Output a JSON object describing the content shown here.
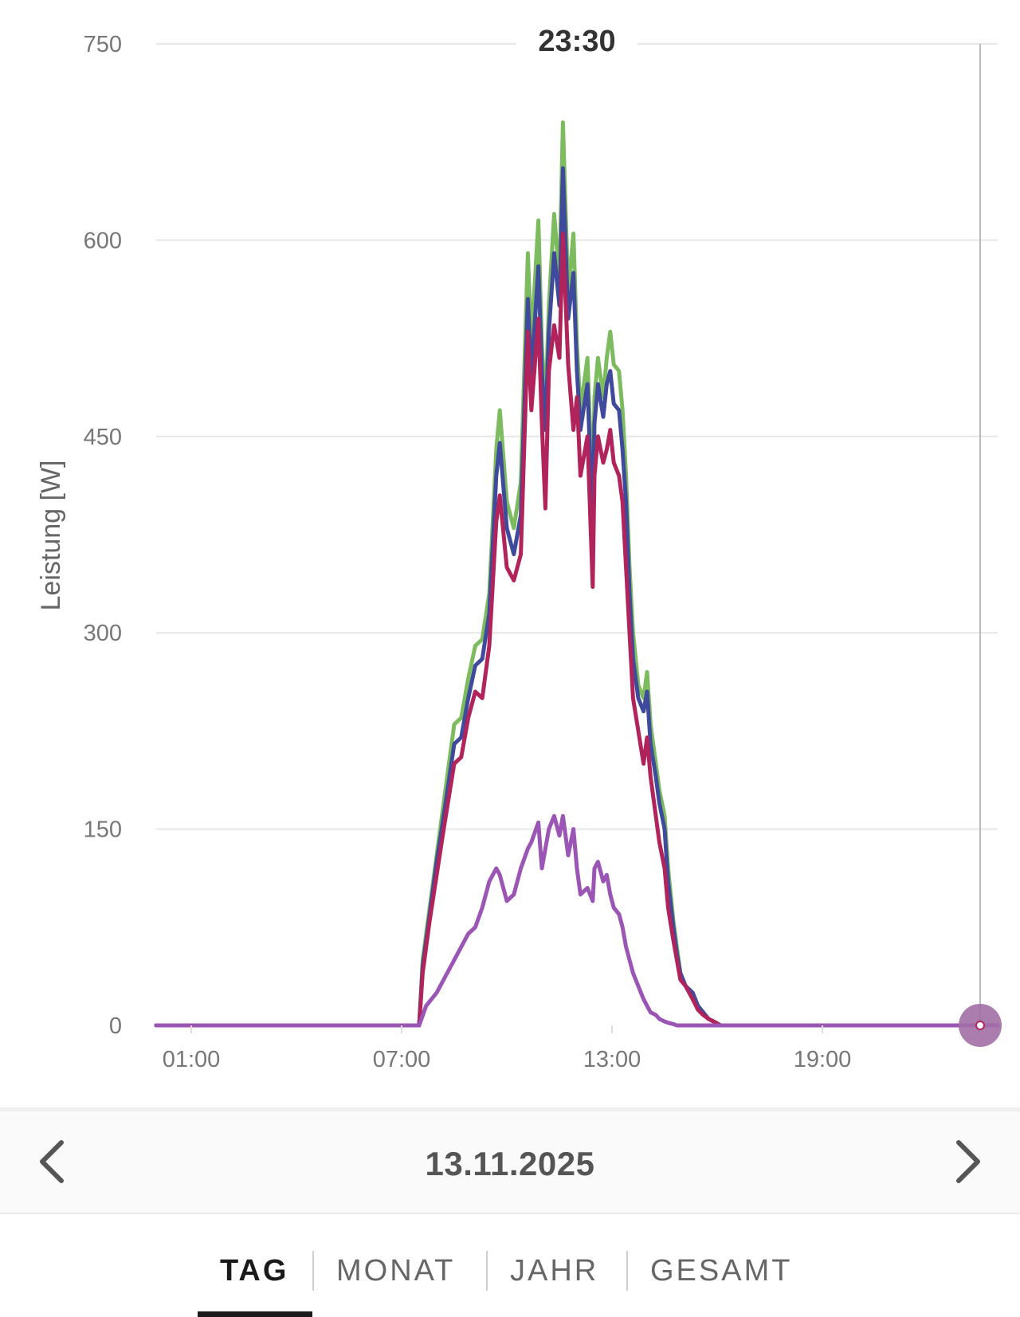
{
  "chart_data": {
    "type": "line",
    "ylabel": "Leistung [W]",
    "ylim": [
      0,
      750
    ],
    "y_ticks": [
      "0",
      "150",
      "300",
      "450",
      "600",
      "750"
    ],
    "x_range_hours": [
      0,
      24
    ],
    "x_ticks": [
      "01:00",
      "07:00",
      "13:00",
      "19:00"
    ],
    "grid": true,
    "cursor_label": "23:30",
    "cursor_time_hours": 23.5,
    "series": [
      {
        "color": "#7dbb5f",
        "x": [
          7.5,
          7.6,
          7.8,
          8.0,
          8.2,
          8.5,
          8.7,
          8.9,
          9.1,
          9.3,
          9.5,
          9.7,
          9.8,
          10.0,
          10.2,
          10.4,
          10.6,
          10.7,
          10.9,
          11.0,
          11.1,
          11.2,
          11.35,
          11.5,
          11.6,
          11.75,
          11.9,
          12.0,
          12.1,
          12.3,
          12.45,
          12.5,
          12.6,
          12.75,
          12.85,
          12.95,
          13.05,
          13.2,
          13.3,
          13.4,
          13.5,
          13.6,
          13.75,
          13.9,
          14.0,
          14.1,
          14.25,
          14.35,
          14.5,
          14.6,
          14.75,
          14.85,
          14.95,
          15.1,
          15.3,
          15.45,
          15.6,
          15.75,
          15.9,
          16.1,
          16.3,
          24.0
        ],
        "values": [
          0,
          50,
          90,
          130,
          170,
          230,
          235,
          265,
          290,
          295,
          330,
          440,
          470,
          400,
          380,
          415,
          590,
          520,
          615,
          520,
          470,
          550,
          620,
          570,
          690,
          560,
          605,
          520,
          470,
          510,
          400,
          480,
          510,
          480,
          510,
          530,
          505,
          500,
          470,
          420,
          350,
          300,
          260,
          250,
          270,
          230,
          200,
          180,
          160,
          120,
          80,
          60,
          40,
          30,
          25,
          15,
          10,
          5,
          3,
          0,
          0,
          0
        ]
      },
      {
        "color": "#3f4a9c",
        "x": [
          7.5,
          7.6,
          7.8,
          8.0,
          8.2,
          8.5,
          8.7,
          8.9,
          9.1,
          9.3,
          9.5,
          9.7,
          9.8,
          10.0,
          10.2,
          10.4,
          10.6,
          10.7,
          10.9,
          11.0,
          11.1,
          11.2,
          11.35,
          11.5,
          11.6,
          11.75,
          11.9,
          12.0,
          12.1,
          12.3,
          12.45,
          12.5,
          12.6,
          12.75,
          12.85,
          12.95,
          13.05,
          13.2,
          13.3,
          13.4,
          13.5,
          13.6,
          13.75,
          13.9,
          14.0,
          14.1,
          14.25,
          14.35,
          14.5,
          14.6,
          14.75,
          14.85,
          14.95,
          15.1,
          15.3,
          15.45,
          15.6,
          15.75,
          15.9,
          16.1,
          16.3,
          24.0
        ],
        "values": [
          0,
          45,
          85,
          125,
          160,
          215,
          220,
          250,
          275,
          280,
          315,
          420,
          445,
          380,
          360,
          390,
          555,
          495,
          580,
          500,
          455,
          530,
          590,
          550,
          655,
          540,
          575,
          500,
          455,
          490,
          380,
          460,
          490,
          465,
          490,
          500,
          475,
          470,
          440,
          400,
          330,
          280,
          250,
          240,
          255,
          215,
          190,
          170,
          150,
          110,
          75,
          55,
          40,
          30,
          25,
          15,
          10,
          5,
          3,
          0,
          0,
          0
        ]
      },
      {
        "color": "#b0245b",
        "x": [
          7.5,
          7.6,
          7.8,
          8.0,
          8.2,
          8.5,
          8.7,
          8.9,
          9.1,
          9.3,
          9.5,
          9.7,
          9.8,
          10.0,
          10.2,
          10.4,
          10.6,
          10.7,
          10.9,
          11.0,
          11.1,
          11.2,
          11.35,
          11.5,
          11.6,
          11.75,
          11.9,
          12.0,
          12.1,
          12.3,
          12.45,
          12.5,
          12.6,
          12.75,
          12.85,
          12.95,
          13.05,
          13.2,
          13.3,
          13.4,
          13.5,
          13.6,
          13.75,
          13.9,
          14.0,
          14.1,
          14.25,
          14.35,
          14.5,
          14.6,
          14.75,
          14.85,
          14.95,
          15.1,
          15.3,
          15.45,
          15.6,
          15.75,
          15.9,
          16.1,
          16.3,
          24.0
        ],
        "values": [
          0,
          40,
          80,
          115,
          150,
          200,
          205,
          235,
          255,
          250,
          290,
          385,
          405,
          350,
          340,
          360,
          530,
          470,
          540,
          460,
          395,
          500,
          535,
          510,
          605,
          505,
          455,
          480,
          420,
          450,
          335,
          420,
          450,
          430,
          440,
          455,
          430,
          420,
          400,
          350,
          300,
          250,
          225,
          200,
          220,
          190,
          160,
          140,
          120,
          90,
          65,
          50,
          35,
          30,
          20,
          12,
          8,
          5,
          3,
          0,
          0,
          0
        ]
      },
      {
        "color": "#9b55b5",
        "x": [
          7.5,
          7.7,
          8.0,
          8.2,
          8.5,
          8.7,
          8.9,
          9.1,
          9.3,
          9.5,
          9.7,
          9.8,
          10.0,
          10.2,
          10.4,
          10.6,
          10.7,
          10.9,
          11.0,
          11.1,
          11.2,
          11.35,
          11.5,
          11.6,
          11.75,
          11.9,
          12.0,
          12.1,
          12.3,
          12.45,
          12.5,
          12.6,
          12.75,
          12.85,
          12.95,
          13.05,
          13.2,
          13.3,
          13.4,
          13.5,
          13.6,
          13.75,
          13.9,
          14.0,
          14.1,
          14.25,
          14.35,
          14.5,
          14.6,
          14.75,
          14.85,
          14.95,
          15.1,
          15.3,
          24.0
        ],
        "values": [
          0,
          15,
          25,
          35,
          50,
          60,
          70,
          75,
          90,
          110,
          120,
          115,
          95,
          100,
          120,
          135,
          140,
          155,
          120,
          135,
          150,
          160,
          145,
          160,
          130,
          150,
          120,
          100,
          105,
          95,
          120,
          125,
          110,
          115,
          100,
          90,
          85,
          75,
          60,
          50,
          40,
          30,
          20,
          15,
          10,
          8,
          5,
          3,
          2,
          1,
          0,
          0,
          0,
          0,
          0
        ]
      }
    ]
  },
  "date_nav": {
    "date": "13.11.2025",
    "prev_icon": "chevron-left-icon",
    "next_icon": "chevron-right-icon"
  },
  "tabs": [
    {
      "label": "TAG",
      "active": true
    },
    {
      "label": "MONAT",
      "active": false
    },
    {
      "label": "JAHR",
      "active": false
    },
    {
      "label": "GESAMT",
      "active": false
    }
  ]
}
